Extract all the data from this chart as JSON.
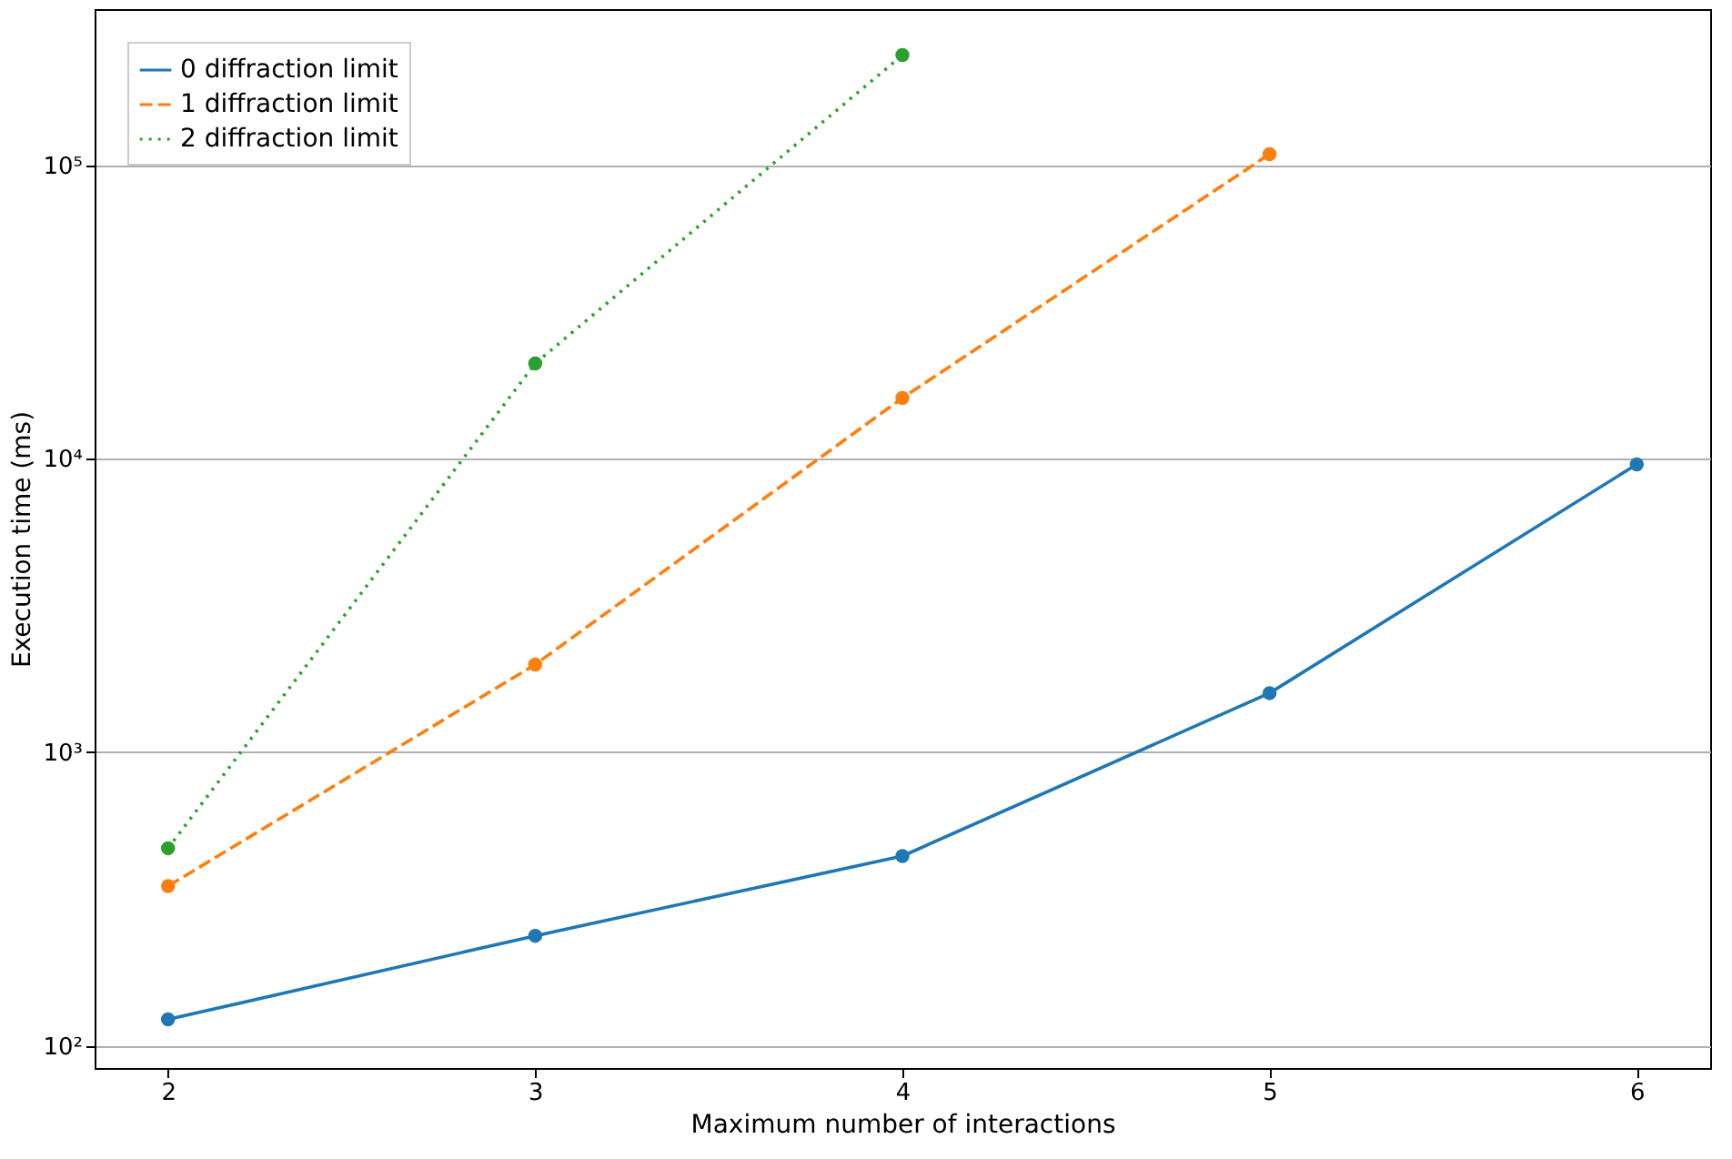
{
  "chart_data": {
    "type": "line",
    "xlabel": "Maximum number of interactions",
    "ylabel": "Execution time (ms)",
    "x": [
      2,
      3,
      4,
      5,
      6
    ],
    "series": [
      {
        "name": "0 diffraction limit",
        "color": "#1f77b4",
        "line_style": "solid",
        "values": [
          123,
          237,
          443,
          1590,
          9560
        ]
      },
      {
        "name": "1 diffraction limit",
        "color": "#ff7f0e",
        "line_style": "dashed",
        "values": [
          350,
          1990,
          16100,
          109000,
          null
        ]
      },
      {
        "name": "2 diffraction limit",
        "color": "#2ca02c",
        "line_style": "dotted",
        "values": [
          471,
          21100,
          237000,
          null,
          null
        ]
      }
    ],
    "log": "y",
    "xlim": [
      1.8,
      6.2
    ],
    "xticks": [
      2,
      3,
      4,
      5,
      6
    ],
    "ylim": [
      84,
      340000
    ],
    "yticks": [
      {
        "value": 100,
        "label": "10²"
      },
      {
        "value": 1000,
        "label": "10³"
      },
      {
        "value": 10000,
        "label": "10⁴"
      },
      {
        "value": 100000,
        "label": "10⁵"
      }
    ],
    "grid": "y",
    "legend": "top left",
    "marker": "circle"
  }
}
